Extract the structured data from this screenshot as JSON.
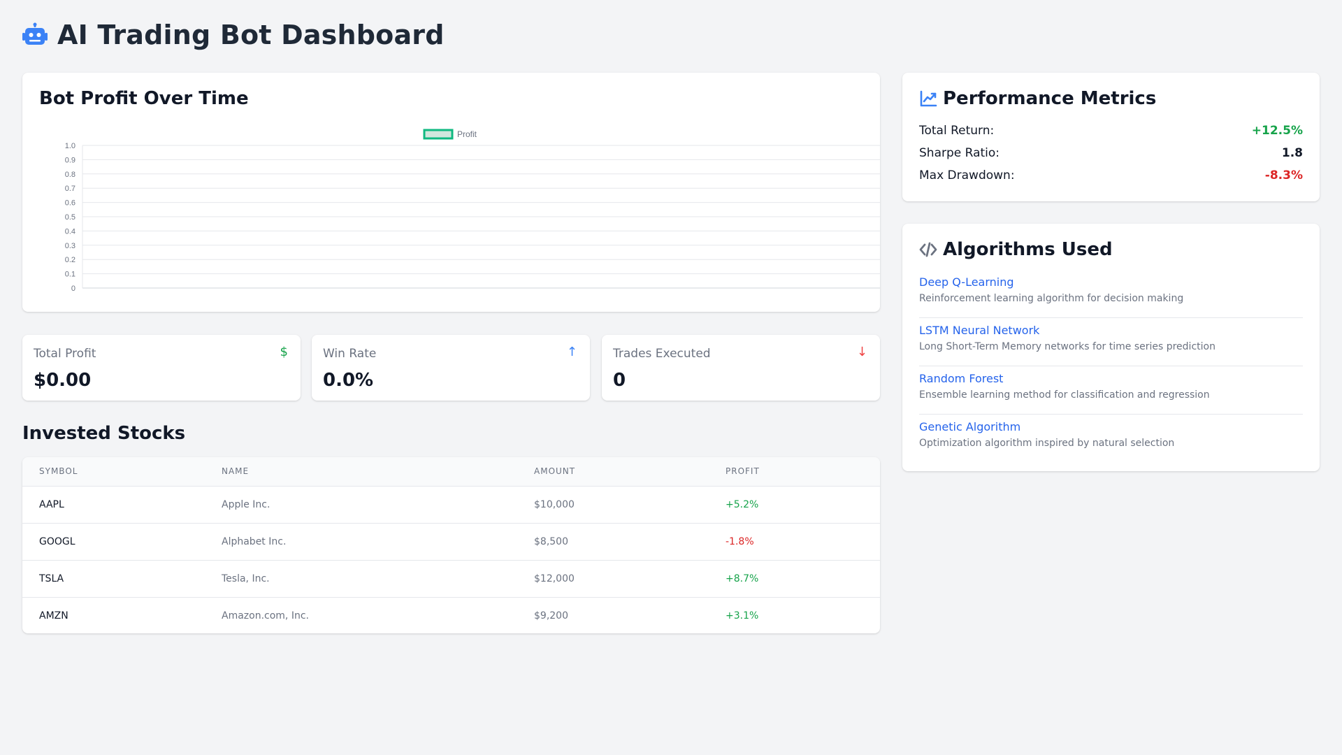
{
  "header": {
    "title": "AI Trading Bot Dashboard",
    "icon": "robot-icon",
    "icon_color": "#3b82f6"
  },
  "chart": {
    "title": "Bot Profit Over Time"
  },
  "chart_data": {
    "type": "line",
    "title": "",
    "x": [],
    "series": [
      {
        "name": "Profit",
        "values": [],
        "color": "#10b981"
      }
    ],
    "ylim": [
      0,
      1
    ],
    "yticks": [
      0,
      0.1,
      0.2,
      0.3,
      0.4,
      0.5,
      0.6,
      0.7,
      0.8,
      0.9,
      1.0
    ],
    "ytick_labels": [
      "0",
      "0.1",
      "0.2",
      "0.3",
      "0.4",
      "0.5",
      "0.6",
      "0.7",
      "0.8",
      "0.9",
      "1.0"
    ],
    "xlabel": "",
    "ylabel": "",
    "grid": true,
    "legend": "top-center"
  },
  "stats": [
    {
      "label": "Total Profit",
      "value": "$0.00",
      "icon": "dollar-icon",
      "glyph": "$",
      "color": "#16a34a"
    },
    {
      "label": "Win Rate",
      "value": "0.0%",
      "icon": "arrow-up-icon",
      "glyph": "↑",
      "color": "#3b82f6"
    },
    {
      "label": "Trades Executed",
      "value": "0",
      "icon": "arrow-down-icon",
      "glyph": "↓",
      "color": "#ef4444"
    }
  ],
  "stocks": {
    "title": "Invested Stocks",
    "columns": [
      "SYMBOL",
      "NAME",
      "AMOUNT",
      "PROFIT"
    ],
    "rows": [
      {
        "symbol": "AAPL",
        "name": "Apple Inc.",
        "amount": "$10,000",
        "profit": "+5.2%",
        "positive": true
      },
      {
        "symbol": "GOOGL",
        "name": "Alphabet Inc.",
        "amount": "$8,500",
        "profit": "-1.8%",
        "positive": false
      },
      {
        "symbol": "TSLA",
        "name": "Tesla, Inc.",
        "amount": "$12,000",
        "profit": "+8.7%",
        "positive": true
      },
      {
        "symbol": "AMZN",
        "name": "Amazon.com, Inc.",
        "amount": "$9,200",
        "profit": "+3.1%",
        "positive": true
      }
    ]
  },
  "metrics": {
    "title": "Performance Metrics",
    "icon": "chart-line-icon",
    "items": [
      {
        "label": "Total Return:",
        "value": "+12.5%",
        "color": "#16a34a"
      },
      {
        "label": "Sharpe Ratio:",
        "value": "1.8",
        "color": "#111827"
      },
      {
        "label": "Max Drawdown:",
        "value": "-8.3%",
        "color": "#dc2626"
      }
    ]
  },
  "algorithms": {
    "title": "Algorithms Used",
    "icon": "code-icon",
    "items": [
      {
        "name": "Deep Q-Learning",
        "description": "Reinforcement learning algorithm for decision making"
      },
      {
        "name": "LSTM Neural Network",
        "description": "Long Short-Term Memory networks for time series prediction"
      },
      {
        "name": "Random Forest",
        "description": "Ensemble learning method for classification and regression"
      },
      {
        "name": "Genetic Algorithm",
        "description": "Optimization algorithm inspired by natural selection"
      }
    ]
  },
  "colors": {
    "positive": "#16a34a",
    "negative": "#dc2626",
    "link": "#2563eb",
    "background": "#f3f4f6"
  }
}
